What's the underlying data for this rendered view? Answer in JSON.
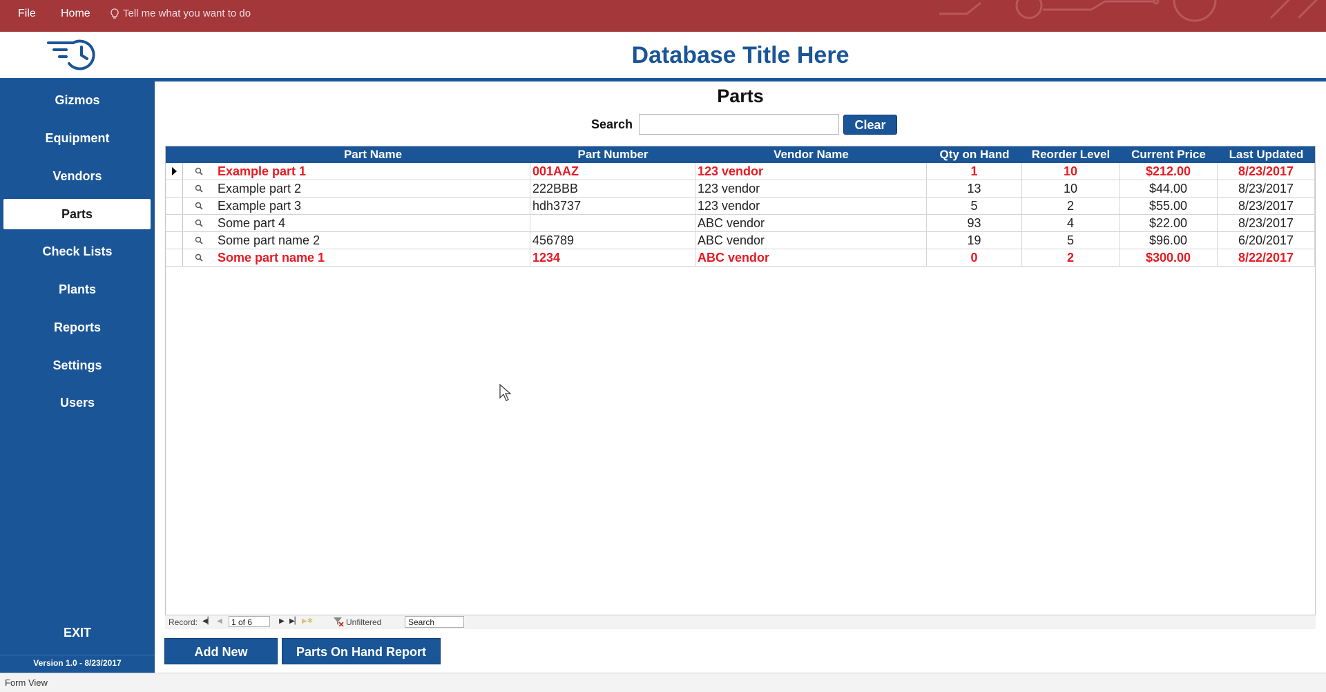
{
  "ribbon": {
    "tabs": [
      "File",
      "Home"
    ],
    "tell_me": "Tell me what you want to do"
  },
  "header": {
    "title": "Database Title Here",
    "logo_icon": "fast-clock-icon"
  },
  "sidebar": {
    "items": [
      "Gizmos",
      "Equipment",
      "Vendors",
      "Parts",
      "Check Lists",
      "Plants",
      "Reports",
      "Settings",
      "Users"
    ],
    "active": "Parts",
    "exit_label": "EXIT",
    "version": "Version 1.0 - 8/23/2017"
  },
  "form": {
    "title": "Parts",
    "search_label": "Search",
    "search_value": "",
    "clear_label": "Clear"
  },
  "table": {
    "columns": [
      "Part Name",
      "Part Number",
      "Vendor Name",
      "Qty on Hand",
      "Reorder Level",
      "Current Price",
      "Last Updated"
    ],
    "rows": [
      {
        "part_name": "Example part 1",
        "part_number": "001AAZ",
        "vendor": "123 vendor",
        "qty": "1",
        "reorder": "10",
        "price": "$212.00",
        "updated": "8/23/2017",
        "highlight": true
      },
      {
        "part_name": "Example part 2",
        "part_number": "222BBB",
        "vendor": "123 vendor",
        "qty": "13",
        "reorder": "10",
        "price": "$44.00",
        "updated": "8/23/2017",
        "highlight": false
      },
      {
        "part_name": "Example part 3",
        "part_number": "hdh3737",
        "vendor": "123 vendor",
        "qty": "5",
        "reorder": "2",
        "price": "$55.00",
        "updated": "8/23/2017",
        "highlight": false
      },
      {
        "part_name": "Some part 4",
        "part_number": "",
        "vendor": "ABC vendor",
        "qty": "93",
        "reorder": "4",
        "price": "$22.00",
        "updated": "8/23/2017",
        "highlight": false
      },
      {
        "part_name": "Some part name 2",
        "part_number": "456789",
        "vendor": "ABC vendor",
        "qty": "19",
        "reorder": "5",
        "price": "$96.00",
        "updated": "6/20/2017",
        "highlight": false
      },
      {
        "part_name": "Some part name 1",
        "part_number": "1234",
        "vendor": "ABC vendor",
        "qty": "0",
        "reorder": "2",
        "price": "$300.00",
        "updated": "8/22/2017",
        "highlight": true
      }
    ]
  },
  "record_nav": {
    "label": "Record:",
    "position": "1 of 6",
    "filter_label": "Unfiltered",
    "search_placeholder": "Search"
  },
  "buttons": {
    "add_new": "Add New",
    "report": "Parts On Hand Report"
  },
  "status": {
    "view": "Form View"
  },
  "colors": {
    "ribbon": "#a4373a",
    "brand": "#1a5597",
    "alert_text": "#e61b23"
  }
}
